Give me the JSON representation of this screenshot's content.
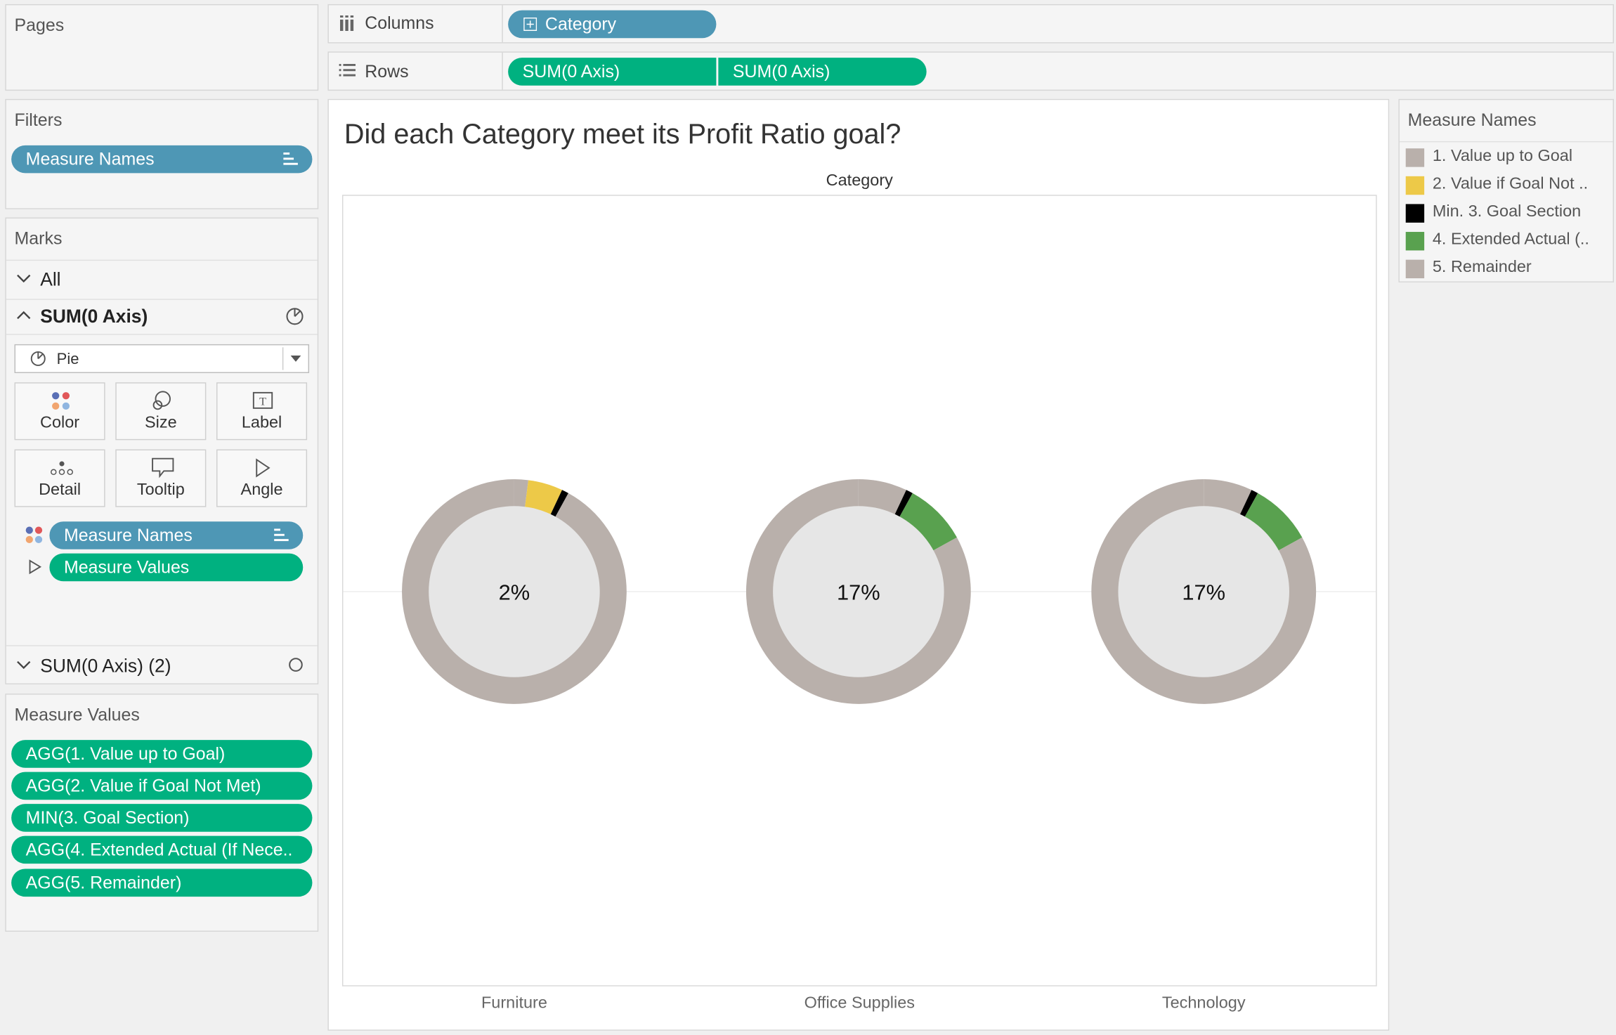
{
  "pages": {
    "title": "Pages"
  },
  "shelves": {
    "columns_label": "Columns",
    "rows_label": "Rows",
    "columns_pill": "Category",
    "rows_pills": [
      "SUM(0 Axis)",
      "SUM(0 Axis)"
    ]
  },
  "filters": {
    "title": "Filters",
    "pill": "Measure Names"
  },
  "marks": {
    "title": "Marks",
    "all_label": "All",
    "card1_label": "SUM(0 Axis)",
    "mark_type": "Pie",
    "buttons": [
      "Color",
      "Size",
      "Label",
      "Detail",
      "Tooltip",
      "Angle"
    ],
    "color_pill": "Measure Names",
    "angle_pill": "Measure Values",
    "card2_label": "SUM(0 Axis) (2)"
  },
  "measure_values": {
    "title": "Measure Values",
    "pills": [
      "AGG(1. Value up to Goal)",
      "AGG(2. Value if Goal Not Met)",
      "MIN(3. Goal Section)",
      "AGG(4.  Extended Actual (If Nece..",
      "AGG(5. Remainder)"
    ]
  },
  "legend": {
    "title": "Measure Names",
    "items": [
      {
        "label": "1. Value up to Goal",
        "color": "#b9b0ab"
      },
      {
        "label": "2. Value if Goal Not ..",
        "color": "#edc948"
      },
      {
        "label": "Min. 3. Goal Section",
        "color": "#000000"
      },
      {
        "label": "4.  Extended Actual (..",
        "color": "#59a14f"
      },
      {
        "label": "5. Remainder",
        "color": "#b9b0ab"
      }
    ]
  },
  "chart_data": {
    "type": "pie",
    "title": "Did each Category meet its Profit Ratio goal?",
    "column_header": "Category",
    "categories": [
      "Furniture",
      "Office Supplies",
      "Technology"
    ],
    "center_labels": [
      "2%",
      "17%",
      "17%"
    ],
    "slices_percent": [
      {
        "value_up_to_goal": 2,
        "value_if_goal_not_met": 5,
        "goal_section": 1,
        "extended_actual": 0,
        "remainder": 92
      },
      {
        "value_up_to_goal": 7,
        "value_if_goal_not_met": 0,
        "goal_section": 1,
        "extended_actual": 9,
        "remainder": 83
      },
      {
        "value_up_to_goal": 7,
        "value_if_goal_not_met": 0,
        "goal_section": 1,
        "extended_actual": 9,
        "remainder": 83
      }
    ]
  }
}
